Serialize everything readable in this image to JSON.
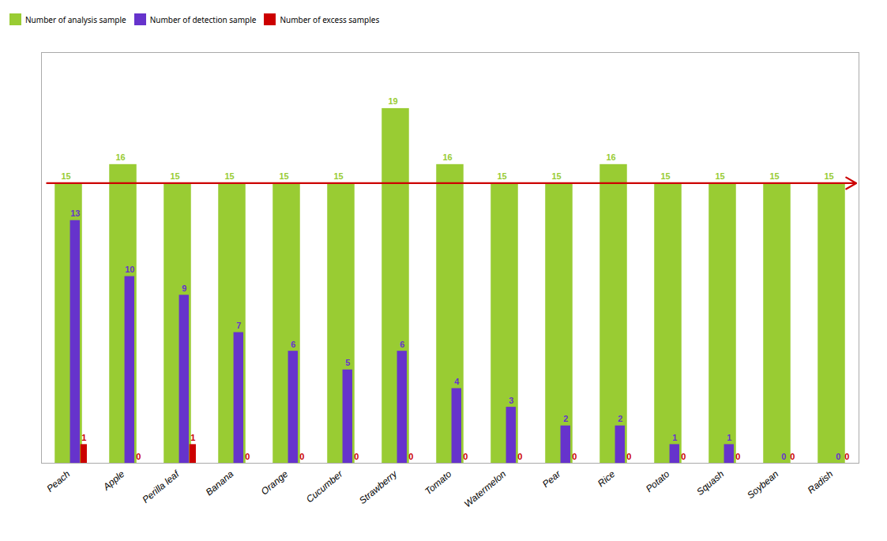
{
  "chart_data": {
    "type": "bar",
    "categories": [
      "Peach",
      "Apple",
      "Perilla leaf",
      "Banana",
      "Orange",
      "Cucumber",
      "Strawberry",
      "Tomato",
      "Watermelon",
      "Pear",
      "Rice",
      "Potato",
      "Squash",
      "Soybean",
      "Radish"
    ],
    "series": [
      {
        "name": "Number of analysis sample",
        "color": "#99cc33",
        "values": [
          15,
          16,
          15,
          15,
          15,
          15,
          19,
          16,
          15,
          15,
          16,
          15,
          15,
          15,
          15
        ]
      },
      {
        "name": "Number of detection sample",
        "color": "#6633cc",
        "values": [
          13,
          10,
          9,
          7,
          6,
          5,
          6,
          4,
          3,
          2,
          2,
          1,
          1,
          0,
          0
        ]
      },
      {
        "name": "Number of excess samples",
        "color": "#cc0000",
        "values": [
          1,
          0,
          1,
          0,
          0,
          0,
          0,
          0,
          0,
          0,
          0,
          0,
          0,
          0,
          0
        ]
      }
    ],
    "ylim": [
      0,
      22
    ],
    "tick_labels": "x",
    "data_labels": true,
    "legend": "top",
    "grid": false,
    "hline": {
      "value": 15,
      "color": "#cc0000"
    }
  }
}
